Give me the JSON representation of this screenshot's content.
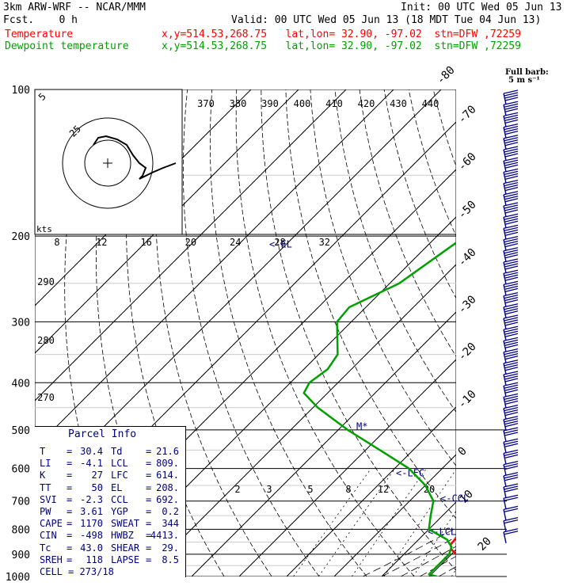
{
  "header": {
    "model": "3km ARW-WRF -- NCAR/MMM",
    "init": "Init: 00 UTC Wed 05 Jun 13",
    "fcst": "Fcst.    0 h",
    "valid": "Valid: 00 UTC Wed 05 Jun 13 (18 MDT Tue 04 Jun 13)",
    "temp_label": "Temperature",
    "temp_loc": "x,y=514.53,268.75   lat,lon= 32.90, -97.02  stn=DFW ,72259",
    "dew_label": "Dewpoint temperature",
    "dew_loc": "x,y=514.53,268.75   lat,lon= 32.90, -97.02  stn=DFW ,72259"
  },
  "colors": {
    "temperature": "#ff0000",
    "dewpoint": "#00a000",
    "text": "#000080",
    "barbs": "#00008b"
  },
  "barb_legend": {
    "line1": "Full barb:",
    "line2": "5 m s⁻¹"
  },
  "parcel_info": {
    "title": "Parcel Info",
    "rows": [
      {
        "k1": "T",
        "v1": "30.4",
        "k2": "Td",
        "v2": "21.6"
      },
      {
        "k1": "LI",
        "v1": "-4.1",
        "k2": "LCL",
        "v2": "809."
      },
      {
        "k1": "K",
        "v1": "27",
        "k2": "LFC",
        "v2": "614."
      },
      {
        "k1": "TT",
        "v1": "50",
        "k2": "EL",
        "v2": "208."
      },
      {
        "k1": "SVI",
        "v1": "-2.3",
        "k2": "CCL",
        "v2": "692."
      },
      {
        "k1": "PW",
        "v1": "3.61",
        "k2": "YGP",
        "v2": "0.2"
      },
      {
        "k1": "CAPE",
        "v1": "1170",
        "k2": "SWEAT",
        "v2": "344"
      },
      {
        "k1": "CIN",
        "v1": "-498",
        "k2": "HWBZ",
        "v2": "4413."
      },
      {
        "k1": "Tc",
        "v1": "43.0",
        "k2": "SHEAR",
        "v2": "29."
      },
      {
        "k1": "SREH",
        "v1": "118",
        "k2": "LAPSE",
        "v2": "8.5"
      },
      {
        "k1": "CELL",
        "v1": "273/18",
        "k2": "",
        "v2": ""
      }
    ]
  },
  "chart_data": {
    "type": "line",
    "subtype": "skew-t log-p",
    "pressure_levels": [
      100,
      200,
      300,
      400,
      500,
      600,
      700,
      800,
      900,
      1000
    ],
    "temp_isotherms": [
      40,
      30,
      20,
      10,
      0,
      -10,
      -20,
      -30,
      -40,
      -50,
      -60,
      -70,
      -80
    ],
    "theta_labels": [
      370,
      380,
      390,
      400,
      410,
      420,
      430,
      440
    ],
    "theta_left_labels": [
      290,
      280,
      270
    ],
    "mixing_ratio_labels": [
      "2",
      "3",
      "5",
      "8",
      "12",
      "20"
    ],
    "hodograph": {
      "rings_label": [
        "5",
        "25"
      ],
      "speed_axis": [
        "8",
        "12",
        "16",
        "20",
        "24",
        "28",
        "32"
      ],
      "axis_unit": "kts"
    },
    "levels_markers": [
      {
        "label": "EL",
        "p": 208
      },
      {
        "label": "M",
        "p": 492
      },
      {
        "label": "LFC",
        "p": 614
      },
      {
        "label": "CCL",
        "p": 692
      },
      {
        "label": "LCL",
        "p": 809
      }
    ],
    "series": [
      {
        "name": "Temperature",
        "points": [
          [
            1000,
            30.4
          ],
          [
            980,
            27
          ],
          [
            950,
            25
          ],
          [
            900,
            21
          ],
          [
            880,
            19
          ],
          [
            860,
            17.8
          ],
          [
            830,
            17.5
          ],
          [
            800,
            17.5
          ],
          [
            780,
            17.5
          ],
          [
            750,
            16.8
          ],
          [
            700,
            14.5
          ],
          [
            650,
            11
          ],
          [
            600,
            6.5
          ],
          [
            550,
            2.5
          ],
          [
            500,
            -1.5
          ],
          [
            450,
            -6
          ],
          [
            400,
            -11.5
          ],
          [
            350,
            -17.5
          ],
          [
            300,
            -25
          ],
          [
            250,
            -34
          ],
          [
            200,
            -44
          ],
          [
            175,
            -49
          ],
          [
            150,
            -53
          ],
          [
            125,
            -58
          ],
          [
            100,
            -64
          ]
        ]
      },
      {
        "name": "Dewpoint temperature",
        "points": [
          [
            1000,
            21.6
          ],
          [
            990,
            19.5
          ],
          [
            970,
            19.5
          ],
          [
            950,
            19.5
          ],
          [
            900,
            19.5
          ],
          [
            870,
            18.5
          ],
          [
            840,
            16
          ],
          [
            800,
            10
          ],
          [
            750,
            7.5
          ],
          [
            700,
            5
          ],
          [
            650,
            0
          ],
          [
            600,
            -7
          ],
          [
            550,
            -17
          ],
          [
            500,
            -28
          ],
          [
            450,
            -39
          ],
          [
            420,
            -45
          ],
          [
            400,
            -46
          ],
          [
            375,
            -45
          ],
          [
            350,
            -46
          ],
          [
            300,
            -53
          ],
          [
            280,
            -53.5
          ],
          [
            250,
            -48
          ],
          [
            200,
            -44
          ],
          [
            175,
            -46
          ],
          [
            150,
            -50
          ],
          [
            125,
            -58
          ],
          [
            100,
            -67
          ]
        ]
      }
    ],
    "wind_barbs_note": "wind barbs along right edge from 100 to 1000 hPa"
  }
}
